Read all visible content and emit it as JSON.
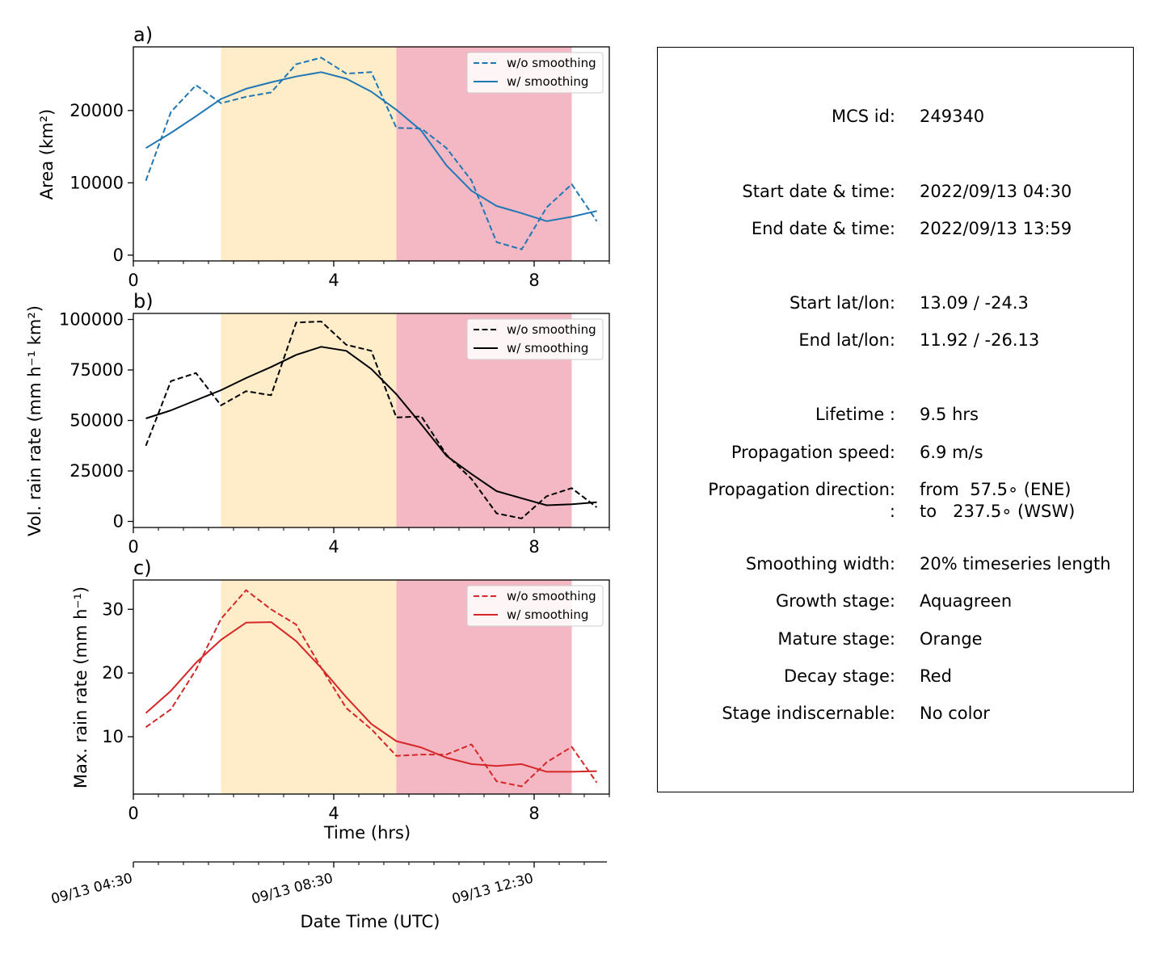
{
  "chart_data": [
    {
      "type": "line",
      "panel_label": "a)",
      "ylabel": "Area  (km²)",
      "x": [
        0.25,
        0.75,
        1.25,
        1.75,
        2.25,
        2.75,
        3.25,
        3.75,
        4.25,
        4.75,
        5.25,
        5.75,
        6.25,
        6.75,
        7.25,
        7.75,
        8.25,
        8.75,
        9.25
      ],
      "series": [
        {
          "name": "w/o smoothing",
          "style": "dashed",
          "color": "#1f77b4",
          "values": [
            10300,
            19800,
            23500,
            21000,
            21900,
            22500,
            26400,
            27300,
            25100,
            25300,
            17600,
            17500,
            14800,
            10300,
            1800,
            800,
            6600,
            9800,
            4700
          ]
        },
        {
          "name": "w/ smoothing",
          "style": "solid",
          "color": "#1f77b4",
          "values": [
            14800,
            16900,
            19200,
            21600,
            23000,
            23900,
            24700,
            25300,
            24400,
            22600,
            20100,
            17200,
            12400,
            8900,
            6800,
            5800,
            4700,
            5300,
            6100
          ]
        }
      ],
      "xlim": [
        0,
        9.5
      ],
      "ylim": [
        -800,
        28800
      ],
      "xticks": [
        0,
        4,
        8
      ],
      "yticks": [
        0,
        10000,
        20000
      ],
      "ytick_labels": [
        "0",
        "10000",
        "20000"
      ],
      "stages": [
        {
          "x0": 1.75,
          "x1": 5.25,
          "color": "#ffecc9"
        },
        {
          "x0": 5.25,
          "x1": 8.75,
          "color": "#f4b8c4"
        }
      ],
      "legend_placement": "top-right"
    },
    {
      "type": "line",
      "panel_label": "b)",
      "ylabel": "Vol. rain rate (mm h⁻¹ km²)",
      "x": [
        0.25,
        0.75,
        1.25,
        1.75,
        2.25,
        2.75,
        3.25,
        3.75,
        4.25,
        4.75,
        5.25,
        5.75,
        6.25,
        6.75,
        7.25,
        7.75,
        8.25,
        8.75,
        9.25
      ],
      "series": [
        {
          "name": "w/o smoothing",
          "style": "dashed",
          "color": "#000000",
          "values": [
            37500,
            69500,
            73500,
            57500,
            64500,
            62500,
            98500,
            99000,
            87500,
            84500,
            51500,
            52000,
            33000,
            21000,
            4000,
            1500,
            12500,
            16500,
            7000
          ]
        },
        {
          "name": "w/ smoothing",
          "style": "solid",
          "color": "#000000",
          "values": [
            51000,
            55000,
            60000,
            65000,
            71000,
            76500,
            82500,
            86500,
            84500,
            75500,
            63000,
            48000,
            32500,
            23500,
            15000,
            11500,
            8000,
            8500,
            9500
          ]
        }
      ],
      "xlim": [
        0,
        9.5
      ],
      "ylim": [
        -3000,
        103000
      ],
      "xticks": [
        0,
        4,
        8
      ],
      "yticks": [
        0,
        25000,
        50000,
        75000,
        100000
      ],
      "ytick_labels": [
        "0",
        "25000",
        "50000",
        "75000",
        "100000"
      ],
      "stages": [
        {
          "x0": 1.75,
          "x1": 5.25,
          "color": "#ffecc9"
        },
        {
          "x0": 5.25,
          "x1": 8.75,
          "color": "#f4b8c4"
        }
      ],
      "legend_placement": "top-right"
    },
    {
      "type": "line",
      "panel_label": "c)",
      "ylabel": "Max. rain rate  (mm h⁻¹)",
      "xlabel": "Time (hrs)",
      "x": [
        0.25,
        0.75,
        1.25,
        1.75,
        2.25,
        2.75,
        3.25,
        3.75,
        4.25,
        4.75,
        5.25,
        5.75,
        6.25,
        6.75,
        7.25,
        7.75,
        8.25,
        8.75,
        9.25
      ],
      "series": [
        {
          "name": "w/o smoothing",
          "style": "dashed",
          "color": "#d62728",
          "values": [
            11.5,
            14.3,
            20.5,
            28.5,
            33.0,
            30.0,
            27.6,
            20.8,
            14.5,
            11.2,
            7.0,
            7.2,
            7.2,
            8.8,
            3.0,
            2.2,
            6.0,
            8.4,
            2.8
          ]
        },
        {
          "name": "w/ smoothing",
          "style": "solid",
          "color": "#d62728",
          "values": [
            13.7,
            17.2,
            21.6,
            25.2,
            27.9,
            28.0,
            25.0,
            20.8,
            16.2,
            12.0,
            9.3,
            8.3,
            6.7,
            5.7,
            5.4,
            5.7,
            4.5,
            4.5,
            4.6
          ]
        }
      ],
      "xlim": [
        0,
        9.5
      ],
      "ylim": [
        1,
        34.6
      ],
      "xticks": [
        0,
        4,
        8
      ],
      "yticks": [
        10,
        20,
        30
      ],
      "ytick_labels": [
        "10",
        "20",
        "30"
      ],
      "stages": [
        {
          "x0": 1.75,
          "x1": 5.25,
          "color": "#ffecc9"
        },
        {
          "x0": 5.25,
          "x1": 8.75,
          "color": "#f4b8c4"
        }
      ],
      "legend_placement": "top-right"
    }
  ],
  "x_tick_labels": [
    "0",
    "4",
    "8"
  ],
  "datetime_axis": {
    "label": "Date Time (UTC)",
    "major_ticks": [
      0,
      4,
      8
    ],
    "tick_labels": [
      "09/13 04:30",
      "09/13 08:30",
      "09/13 12:30"
    ]
  },
  "info": [
    {
      "label": "MCS id:",
      "value": "249340"
    },
    {
      "label": "Start date & time:",
      "value": "2022/09/13 04:30"
    },
    {
      "label": "End date & time:",
      "value": "2022/09/13 13:59"
    },
    {
      "label": "Start lat/lon:",
      "value": "13.09 / -24.3"
    },
    {
      "label": "End lat/lon:",
      "value": "11.92 / -26.13"
    },
    {
      "label": "Lifetime :",
      "value": "9.5 hrs"
    },
    {
      "label": "Propagation speed:",
      "value": "6.9 m/s"
    },
    {
      "label": "Propagation direction:",
      "value": "from  57.5∘ (ENE)"
    },
    {
      "label": ":",
      "value": "to   237.5∘ (WSW)"
    },
    {
      "label": "Smoothing width:",
      "value": "20% timeseries length"
    },
    {
      "label": "Growth stage:",
      "value": "Aquagreen"
    },
    {
      "label": "Mature stage:",
      "value": "Orange"
    },
    {
      "label": "Decay stage:",
      "value": "Red"
    },
    {
      "label": "Stage indiscernable:",
      "value": "No color"
    }
  ]
}
